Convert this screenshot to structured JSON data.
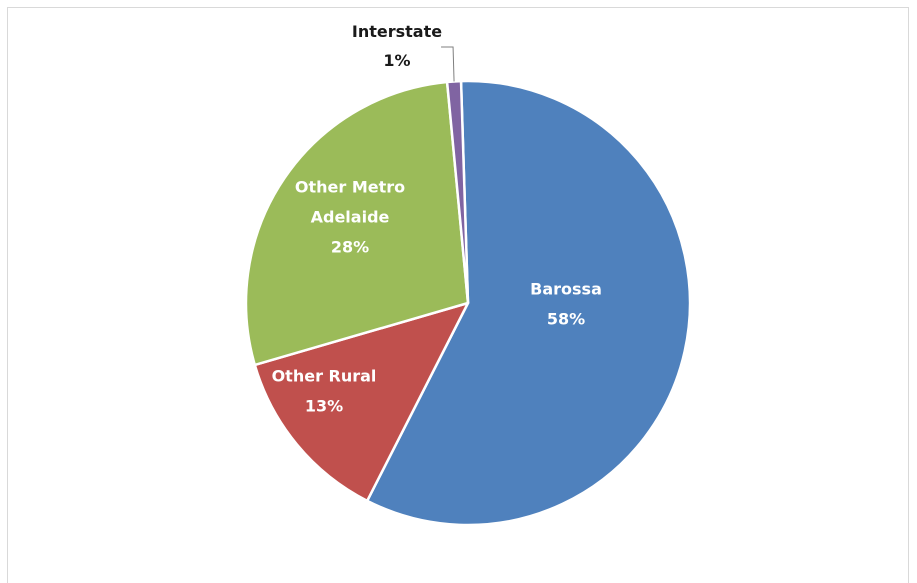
{
  "chart_data": {
    "type": "pie",
    "title": "",
    "start_angle_deg": -1.8,
    "direction": "clockwise",
    "slices": [
      {
        "label": "Barossa",
        "value": 58,
        "percent_label": "58%",
        "color": "#4f81bd"
      },
      {
        "label": "Other Rural",
        "value": 13,
        "percent_label": "13%",
        "color": "#c0504d"
      },
      {
        "label": "Other Metro Adelaide",
        "value": 28,
        "percent_label": "28%",
        "color": "#9bbb59"
      },
      {
        "label": "Interstate",
        "value": 1,
        "percent_label": "1%",
        "color": "#8064a2"
      }
    ],
    "slice_border_color": "#ffffff",
    "label_colors": {
      "inside": "#ffffff",
      "outside": "#1a1a1a"
    },
    "legend": "none"
  }
}
